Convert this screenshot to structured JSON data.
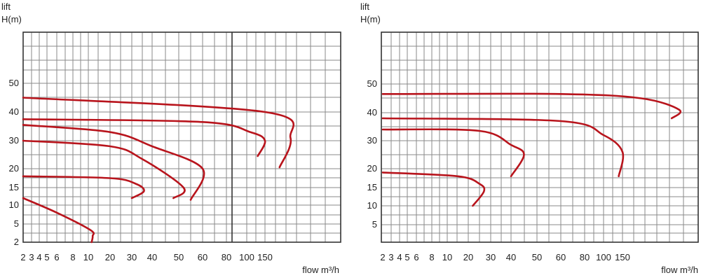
{
  "chart_data": [
    {
      "type": "line",
      "ylabel_lines": [
        "lift",
        "H(m)"
      ],
      "xlabel": "flow m³/h",
      "x_ticks": [
        "2",
        "3",
        "4",
        "5",
        "6",
        "8",
        "10",
        "20",
        "30",
        "40",
        "50",
        "60",
        "80",
        "100",
        "150"
      ],
      "y_ticks": [
        "50",
        "40",
        "30",
        "20",
        "15",
        "10",
        "5",
        "2"
      ],
      "grid": true,
      "curve_color": "#b8141c",
      "series": [
        {
          "x": [
            2,
            150,
            220,
            190
          ],
          "y": [
            45,
            40,
            31,
            20.5
          ]
        },
        {
          "x": [
            2,
            60,
            110,
            150,
            130
          ],
          "y": [
            37.5,
            36.5,
            33,
            30,
            24.5
          ]
        },
        {
          "x": [
            2,
            20,
            40,
            60,
            55
          ],
          "y": [
            35.5,
            33,
            28,
            20,
            11.5
          ]
        },
        {
          "x": [
            2,
            20,
            35,
            52,
            48
          ],
          "y": [
            30,
            28,
            23.5,
            15,
            12
          ]
        },
        {
          "x": [
            2,
            20,
            32,
            36,
            30
          ],
          "y": [
            18,
            17.5,
            16,
            14,
            12
          ]
        },
        {
          "x": [
            2,
            6,
            11,
            12,
            11.5
          ],
          "y": [
            12,
            8,
            4,
            3,
            2
          ]
        }
      ]
    },
    {
      "type": "line",
      "ylabel_lines": [
        "lift",
        "H(m)"
      ],
      "xlabel": "flow m³/h",
      "x_ticks": [
        "2",
        "3",
        "4",
        "5",
        "6",
        "8",
        "10",
        "20",
        "30",
        "40",
        "50",
        "60",
        "80",
        "100",
        "150"
      ],
      "y_ticks": [
        "50",
        "40",
        "30",
        "20",
        "15",
        "10",
        "5"
      ],
      "grid": true,
      "curve_color": "#b8141c",
      "series": [
        {
          "x": [
            2,
            60,
            200,
            300,
            280
          ],
          "y": [
            46.5,
            46.5,
            45,
            41,
            38
          ]
        },
        {
          "x": [
            2,
            60,
            100,
            150,
            140
          ],
          "y": [
            38,
            37,
            32,
            26,
            18
          ]
        },
        {
          "x": [
            2,
            25,
            40,
            45,
            40
          ],
          "y": [
            34,
            33.5,
            28.5,
            25,
            18
          ]
        },
        {
          "x": [
            2,
            15,
            25,
            27,
            22
          ],
          "y": [
            19,
            18,
            16,
            14,
            10
          ]
        }
      ]
    }
  ]
}
